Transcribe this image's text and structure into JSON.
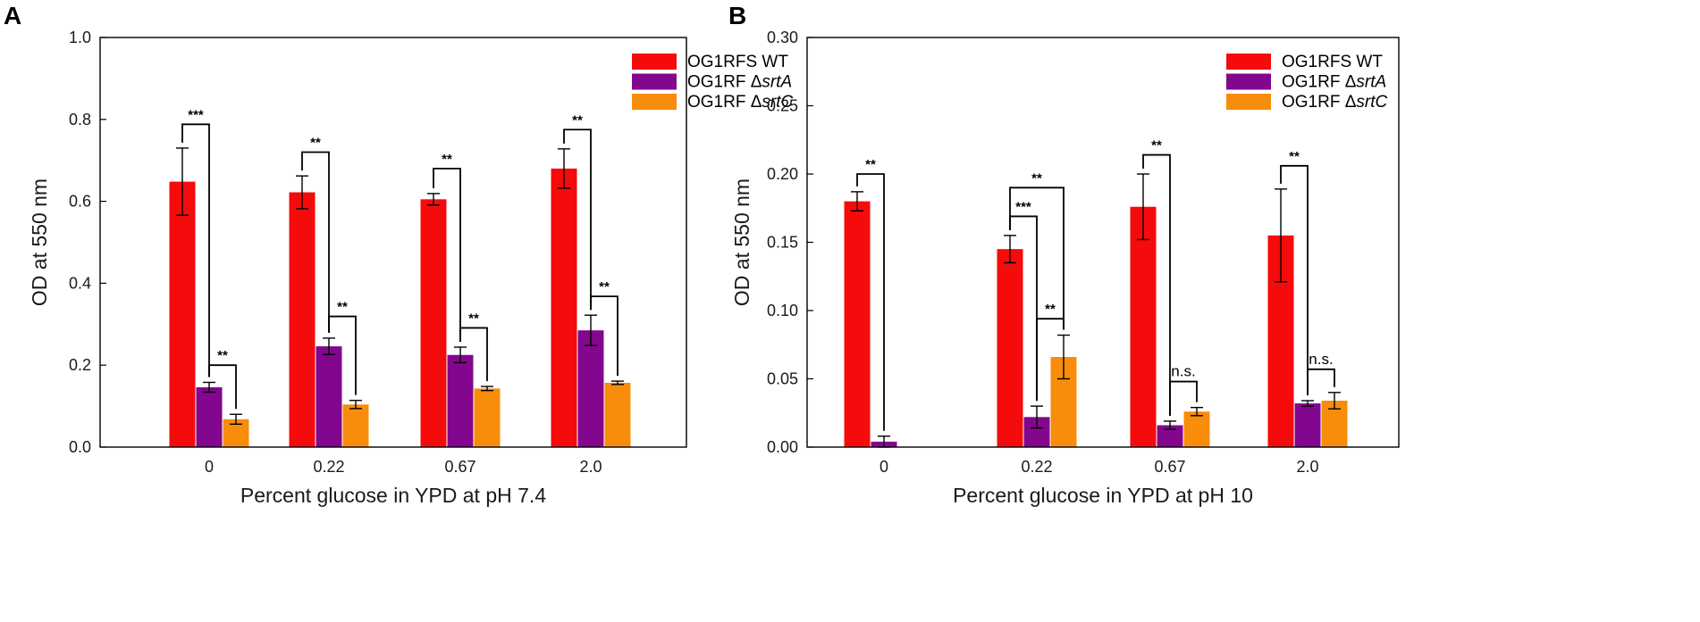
{
  "chart_data": [
    {
      "panel": "A",
      "type": "bar",
      "title": "",
      "xlabel": "Percent glucose in YPD at pH 7.4",
      "ylabel": "OD at 550 nm",
      "ylim": [
        0,
        1.0
      ],
      "yticks": [
        "0.0",
        "0.2",
        "0.4",
        "0.6",
        "0.8",
        "1.0"
      ],
      "categories": [
        "0",
        "0.22",
        "0.67",
        "2.0"
      ],
      "legend_position": "top-right",
      "series": [
        {
          "name": "OG1RFS WT",
          "legend_prefix": "OG1RFS WT",
          "legend_italic": "",
          "color": "#f50b0b",
          "values": [
            0.648,
            0.622,
            0.605,
            0.68
          ],
          "errors": [
            0.082,
            0.04,
            0.014,
            0.048
          ]
        },
        {
          "name": "OG1RF ΔsrtA",
          "legend_prefix": "OG1RF Δ",
          "legend_italic": "srtA",
          "color": "#83078e",
          "values": [
            0.146,
            0.246,
            0.225,
            0.285
          ],
          "errors": [
            0.012,
            0.02,
            0.019,
            0.037
          ]
        },
        {
          "name": "OG1RF ΔsrtC",
          "legend_prefix": "OG1RF Δ",
          "legend_italic": "srtC",
          "color": "#f88c0b",
          "values": [
            0.068,
            0.104,
            0.143,
            0.157
          ],
          "errors": [
            0.012,
            0.01,
            0.005,
            0.004
          ]
        }
      ],
      "annotations": [
        {
          "label": "***",
          "cat": 0,
          "from": 0,
          "to": 1,
          "y": 0.788
        },
        {
          "label": "**",
          "cat": 0,
          "from": 1,
          "to": 2,
          "y": 0.2
        },
        {
          "label": "**",
          "cat": 1,
          "from": 0,
          "to": 1,
          "y": 0.72
        },
        {
          "label": "**",
          "cat": 1,
          "from": 1,
          "to": 2,
          "y": 0.319
        },
        {
          "label": "**",
          "cat": 2,
          "from": 0,
          "to": 1,
          "y": 0.68
        },
        {
          "label": "**",
          "cat": 2,
          "from": 1,
          "to": 2,
          "y": 0.291
        },
        {
          "label": "**",
          "cat": 3,
          "from": 0,
          "to": 1,
          "y": 0.775
        },
        {
          "label": "**",
          "cat": 3,
          "from": 1,
          "to": 2,
          "y": 0.368
        }
      ]
    },
    {
      "panel": "B",
      "type": "bar",
      "title": "",
      "xlabel": "Percent glucose in YPD at pH 10",
      "ylabel": "OD at 550 nm",
      "ylim": [
        0,
        0.3
      ],
      "yticks": [
        "0.00",
        "0.05",
        "0.10",
        "0.15",
        "0.20",
        "0.25",
        "0.30"
      ],
      "categories": [
        "0",
        "0.22",
        "0.67",
        "2.0"
      ],
      "legend_position": "top-right",
      "series": [
        {
          "name": "OG1RFS  WT",
          "legend_prefix": "OG1RFS  WT",
          "legend_italic": "",
          "color": "#f50b0b",
          "values": [
            0.18,
            0.145,
            0.176,
            0.155
          ],
          "errors": [
            0.007,
            0.01,
            0.024,
            0.034
          ]
        },
        {
          "name": "OG1RF ΔsrtA",
          "legend_prefix": "OG1RF Δ",
          "legend_italic": "srtA",
          "color": "#83078e",
          "values": [
            0.004,
            0.022,
            0.016,
            0.032
          ],
          "errors": [
            0.004,
            0.008,
            0.003,
            0.002
          ]
        },
        {
          "name": "OG1RF ΔsrtC",
          "legend_prefix": "OG1RF Δ",
          "legend_italic": "srtC",
          "color": "#f88c0b",
          "values": [
            null,
            0.066,
            0.026,
            0.034
          ],
          "errors": [
            null,
            0.016,
            0.003,
            0.006
          ]
        }
      ],
      "annotations": [
        {
          "label": "**",
          "cat": 0,
          "from": 0,
          "to": 1,
          "y": 0.2
        },
        {
          "label": "**",
          "cat": 1,
          "from": 0,
          "to": 2,
          "y": 0.19
        },
        {
          "label": "***",
          "cat": 1,
          "from": 0,
          "to": 1,
          "y": 0.169
        },
        {
          "label": "**",
          "cat": 1,
          "from": 1,
          "to": 2,
          "y": 0.094
        },
        {
          "label": "**",
          "cat": 2,
          "from": 0,
          "to": 1,
          "y": 0.214
        },
        {
          "label": "n.s.",
          "cat": 2,
          "from": 1,
          "to": 2,
          "y": 0.048
        },
        {
          "label": "**",
          "cat": 3,
          "from": 0,
          "to": 1,
          "y": 0.206
        },
        {
          "label": "n.s.",
          "cat": 3,
          "from": 1,
          "to": 2,
          "y": 0.057
        }
      ]
    }
  ]
}
